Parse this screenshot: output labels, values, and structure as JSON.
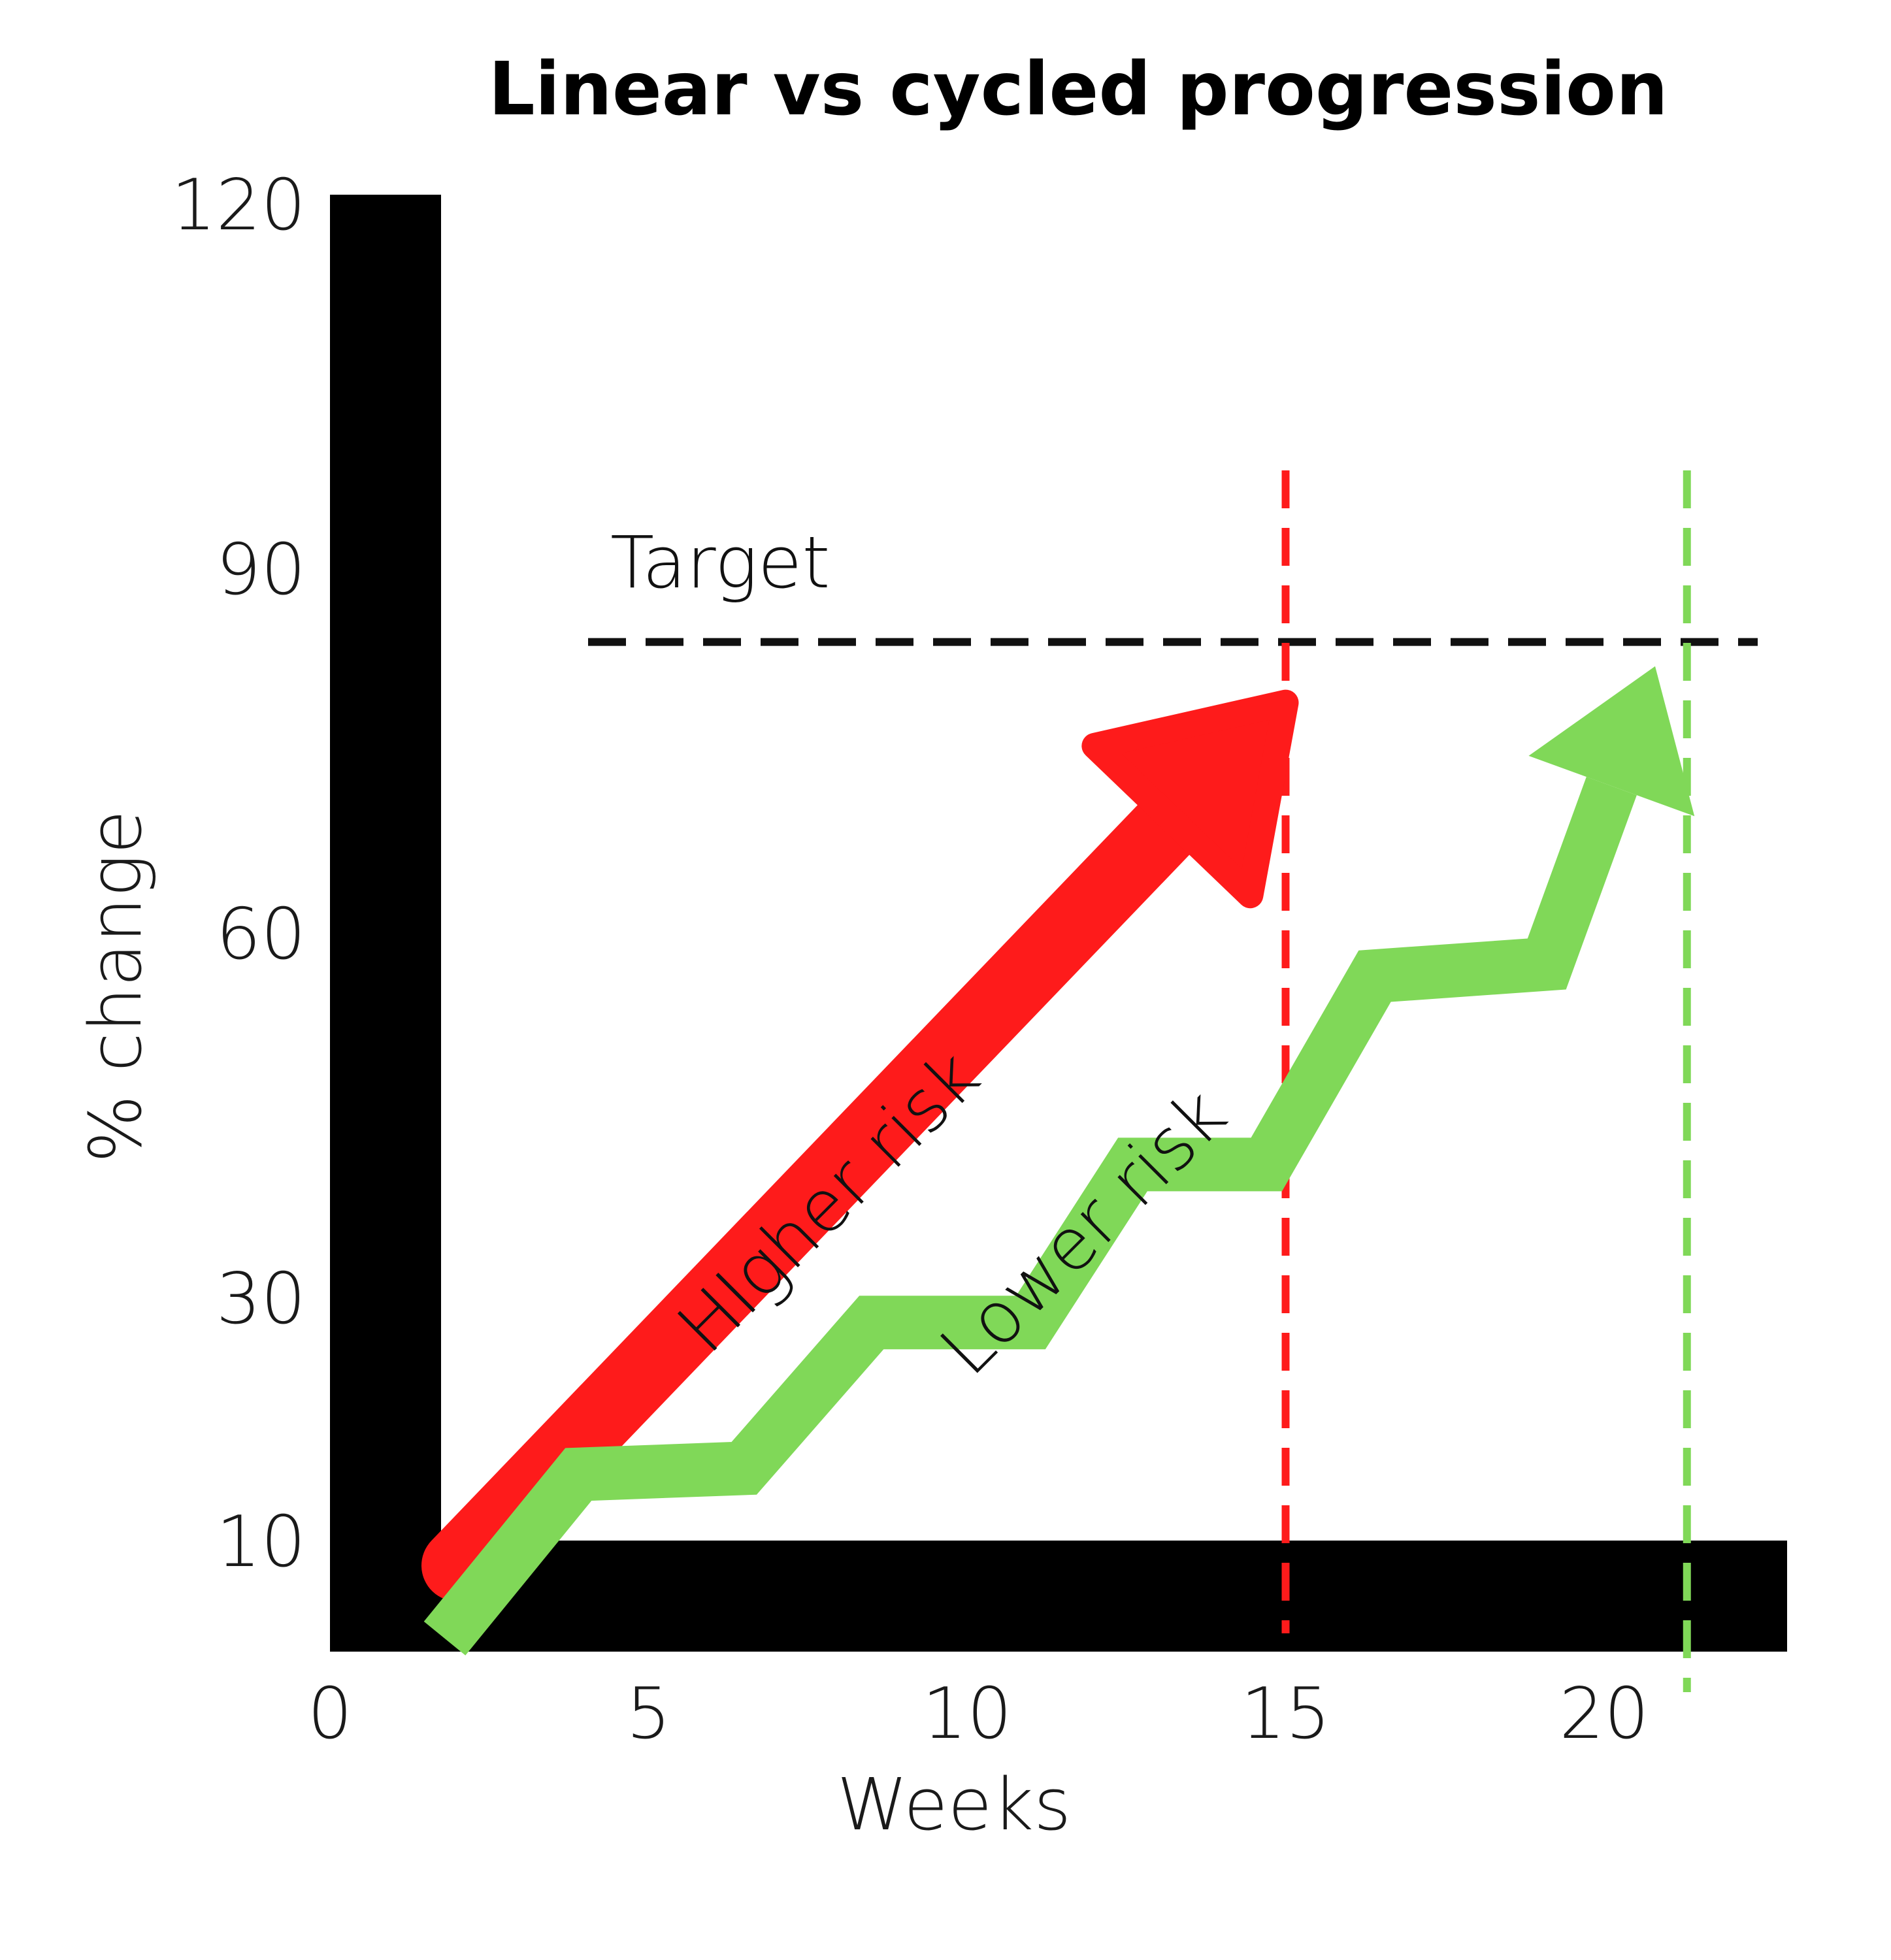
{
  "chart_data": {
    "type": "line",
    "title": "Linear vs cycled progression",
    "xlabel": "Weeks",
    "ylabel": "% change",
    "xlim": [
      0,
      22.5
    ],
    "ylim": [
      0,
      125
    ],
    "x_ticks": [
      "0",
      "5",
      "10",
      "15",
      "20"
    ],
    "y_ticks": [
      "10",
      "30",
      "60",
      "90",
      "120"
    ],
    "grid": false,
    "legend": "none",
    "series": [
      {
        "color": "#fe1b1b",
        "style": "arrow",
        "points": [
          [
            2,
            8
          ],
          [
            15,
            79
          ]
        ]
      },
      {
        "color": "#80d858",
        "style": "zigzag-arrow",
        "points": [
          [
            1.8,
            2
          ],
          [
            3.9,
            15.5
          ],
          [
            6.5,
            16
          ],
          [
            8.5,
            28
          ],
          [
            11,
            28
          ],
          [
            12.6,
            41
          ],
          [
            14.7,
            41
          ],
          [
            16.4,
            56.5
          ],
          [
            19.1,
            57.5
          ],
          [
            20.8,
            82
          ]
        ]
      }
    ],
    "reference_lines": [
      {
        "orientation": "horizontal",
        "y": 84,
        "color": "#111111",
        "style": "dashed"
      },
      {
        "orientation": "vertical",
        "x": 15,
        "color": "#fe1b1b",
        "style": "dashed"
      },
      {
        "orientation": "vertical",
        "x": 21.3,
        "color": "#80d858",
        "style": "dashed"
      }
    ],
    "annotations": [
      {
        "text": "Target",
        "x": 4.4,
        "y": 88.5
      },
      {
        "text": "HIgher risk",
        "x": 8.1,
        "y": 36.5,
        "rotation": -45
      },
      {
        "text": "Lower risk",
        "x": 12.1,
        "y": 34,
        "rotation": -45
      }
    ]
  }
}
